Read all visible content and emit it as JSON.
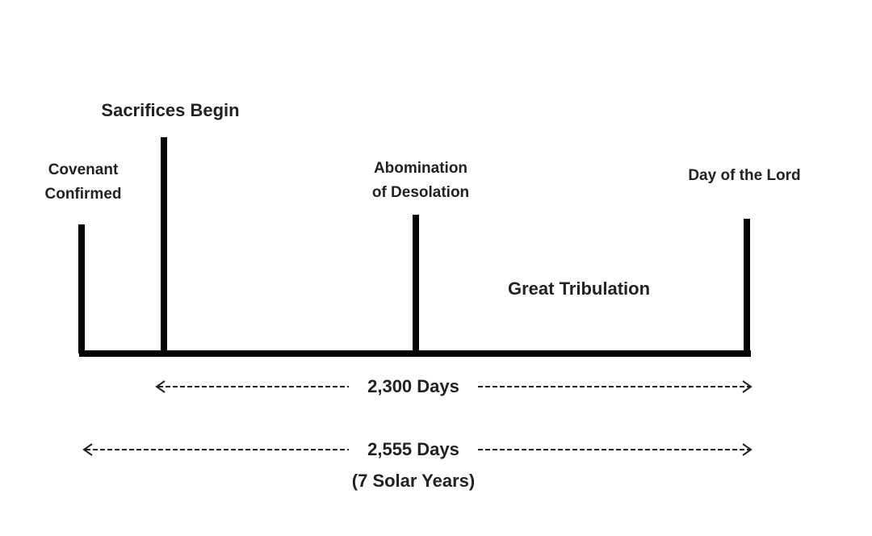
{
  "markers": [
    {
      "label": [
        "Covenant",
        "Confirmed"
      ]
    },
    {
      "label": [
        "Sacrifices Begin"
      ]
    },
    {
      "label": [
        "Abomination",
        "of Desolation"
      ]
    },
    {
      "label": [
        "Day of the Lord"
      ]
    }
  ],
  "period_label": "Great Tribulation",
  "spans": [
    {
      "label": "2,300 Days"
    },
    {
      "label": "2,555 Days",
      "note": "(7 Solar Years)"
    }
  ]
}
